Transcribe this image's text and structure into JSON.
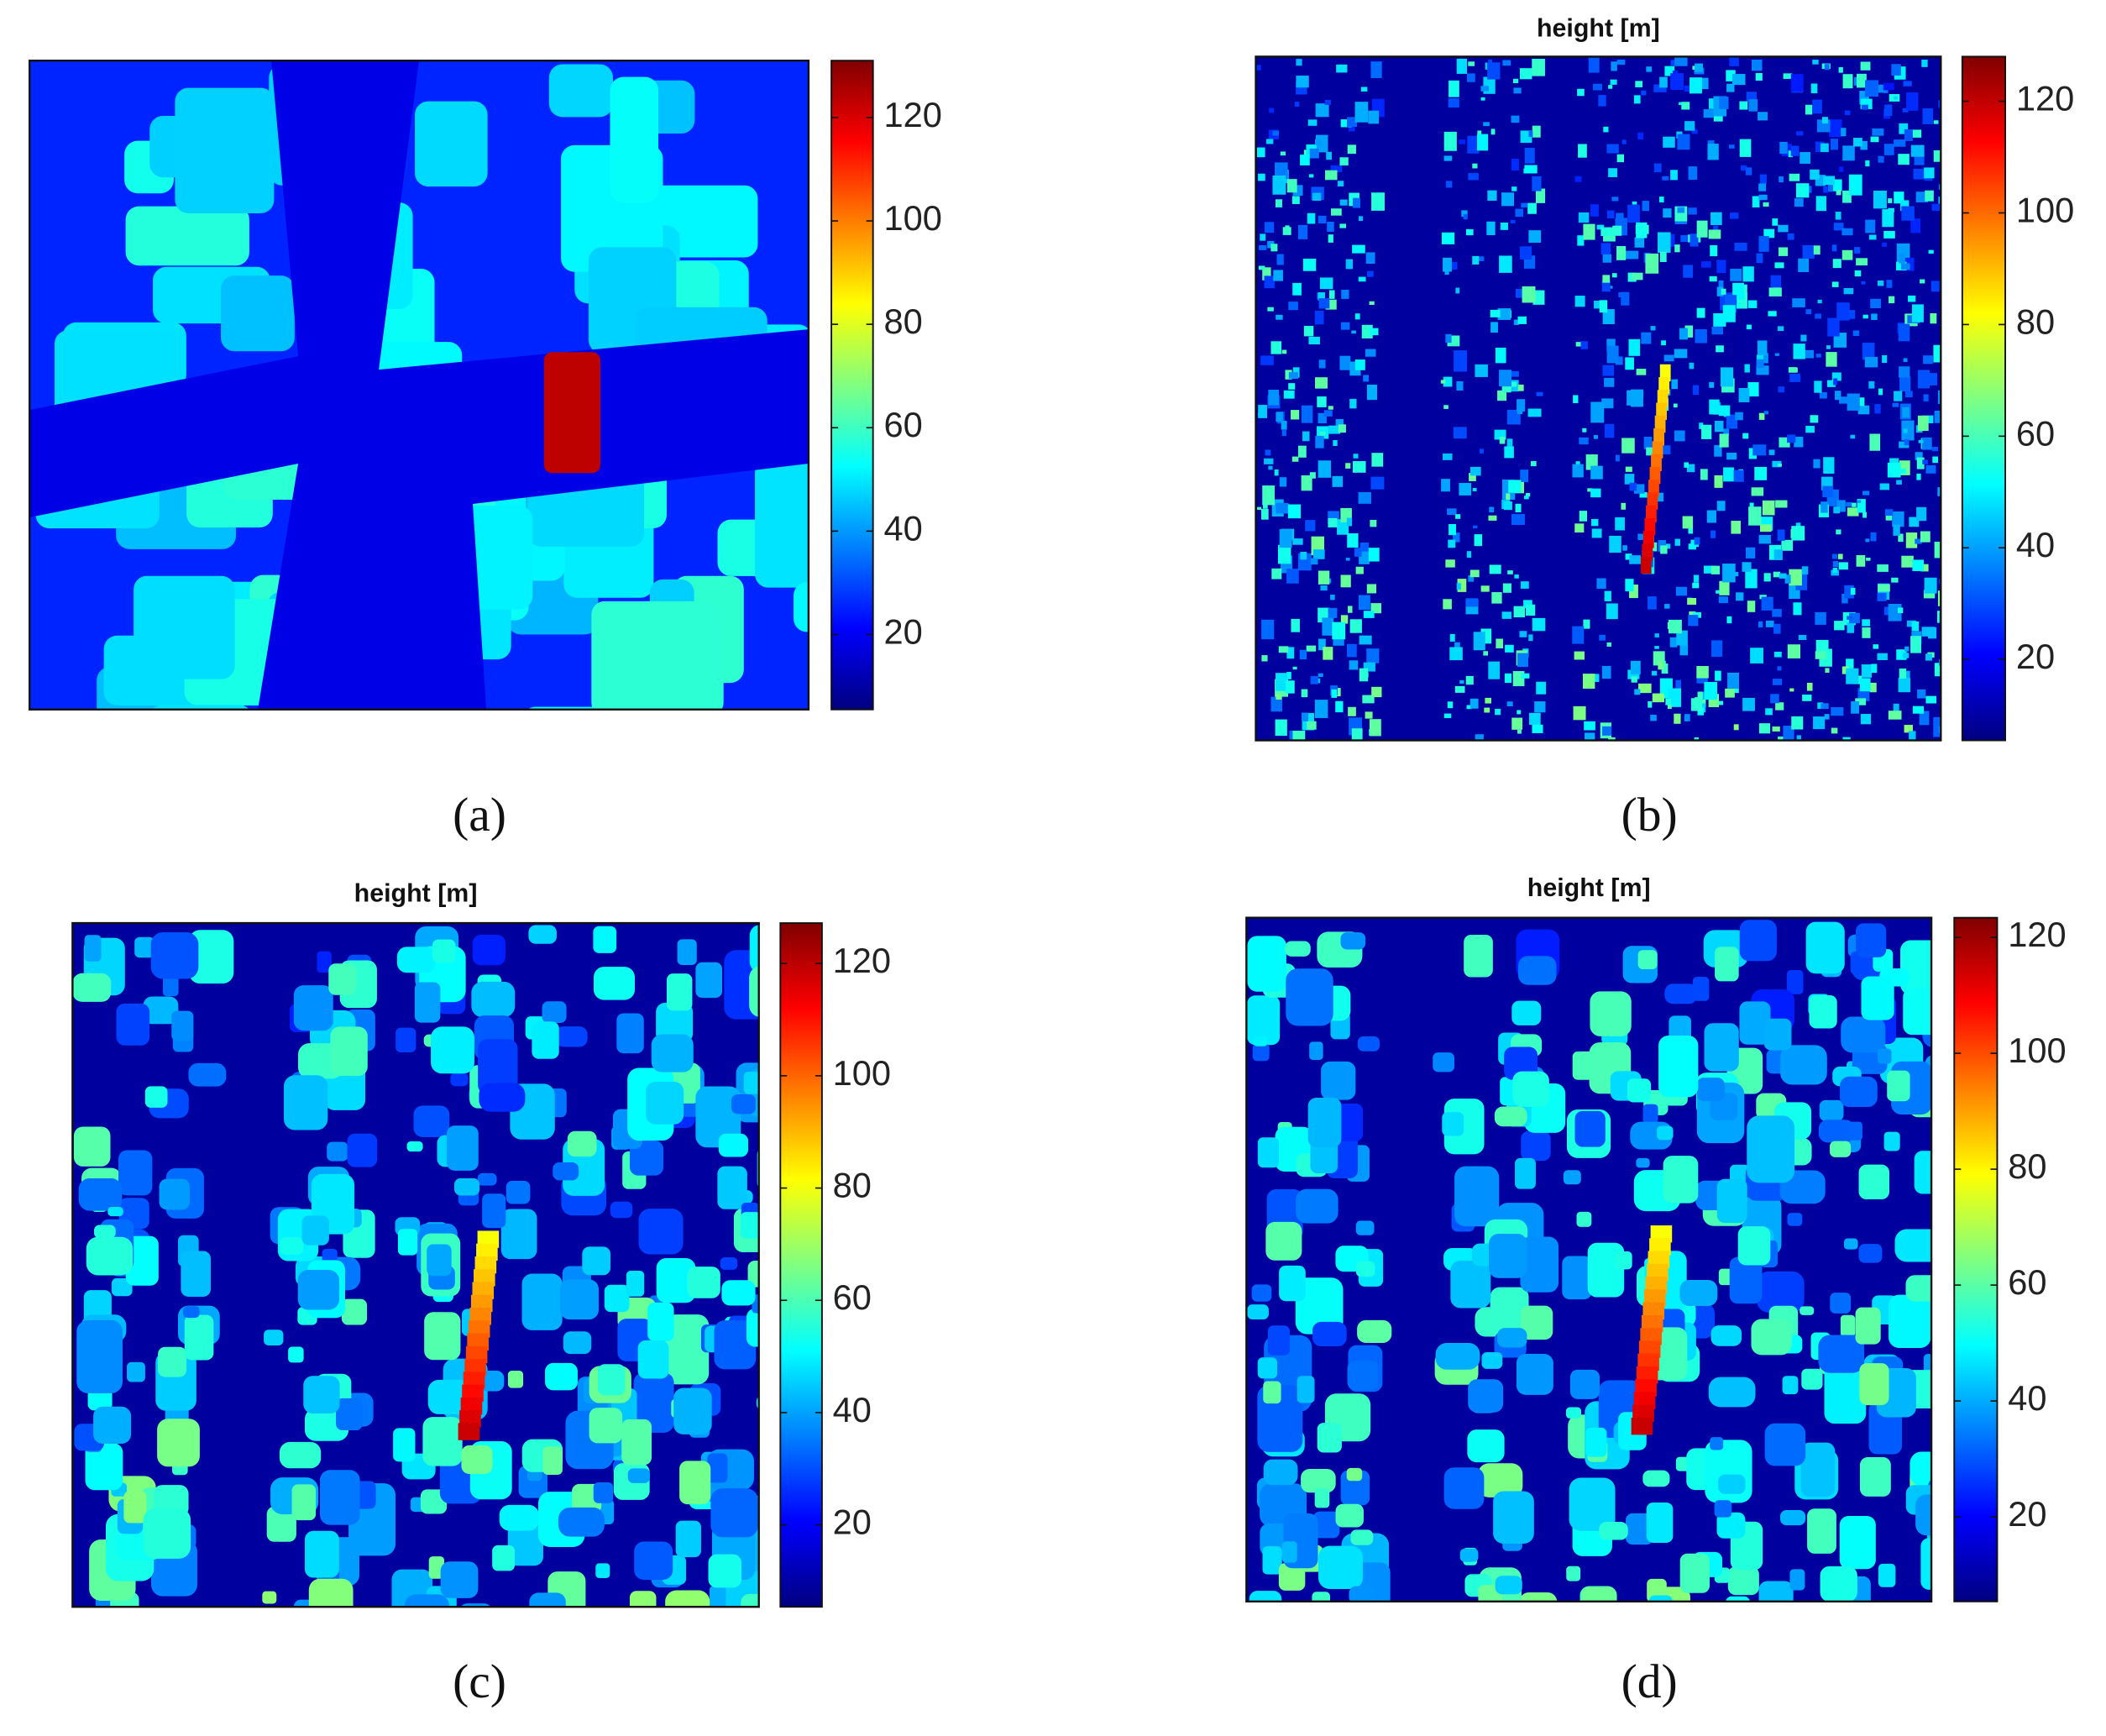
{
  "panels": [
    {
      "label": "(a)",
      "colorbar": {
        "colormap": "jet",
        "clim": [
          5.5,
          131
        ],
        "ticks": [
          20,
          40,
          60,
          80,
          100,
          120
        ]
      }
    },
    {
      "label": "(b)",
      "title": "height [m]",
      "colorbar": {
        "colormap": "jet",
        "clim": [
          5.5,
          128
        ],
        "ticks": [
          20,
          40,
          60,
          80,
          100,
          120
        ]
      }
    },
    {
      "label": "(c)",
      "title": "height [m]",
      "colorbar": {
        "colormap": "jet",
        "clim": [
          5.4,
          127.2
        ],
        "ticks": [
          20,
          40,
          60,
          80,
          100,
          120
        ]
      }
    },
    {
      "label": "(d)",
      "title": "height [m]",
      "colorbar": {
        "colormap": "jet",
        "clim": [
          5.4,
          123.4
        ],
        "ticks": [
          20,
          40,
          60,
          80,
          100,
          120
        ]
      }
    }
  ]
}
